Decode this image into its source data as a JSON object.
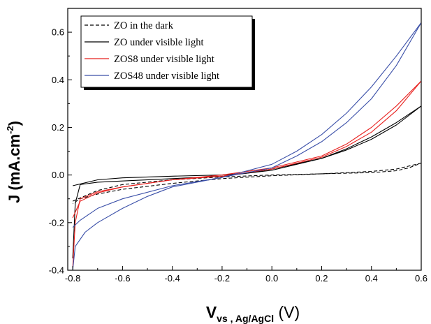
{
  "chart_data": {
    "type": "line",
    "xlabel": {
      "main": "V",
      "sub": "vs , Ag/AgCl",
      "unit": " (V)"
    },
    "ylabel": {
      "main": "J (mA.cm",
      "sup": "-2",
      "end": ")"
    },
    "xlim": [
      -0.82,
      0.6
    ],
    "ylim": [
      -0.4,
      0.7
    ],
    "x_ticks": [
      -0.8,
      -0.6,
      -0.4,
      -0.2,
      0.0,
      0.2,
      0.4,
      0.6
    ],
    "x_tick_labels": [
      "-0.8",
      "-0.6",
      "-0.4",
      "-0.2",
      "0.0",
      "0.2",
      "0.4",
      "0.6"
    ],
    "y_ticks": [
      -0.4,
      -0.2,
      0.0,
      0.2,
      0.4,
      0.6
    ],
    "y_tick_labels": [
      "-0.4",
      "-0.2",
      "0.0",
      "0.2",
      "0.4",
      "0.6"
    ],
    "legend_position": "top-left",
    "series": [
      {
        "name": "ZO in the dark",
        "color": "#000000",
        "dash": "dashed",
        "forward": [
          [
            -0.8,
            -0.11
          ],
          [
            -0.7,
            -0.065
          ],
          [
            -0.6,
            -0.04
          ],
          [
            -0.4,
            -0.02
          ],
          [
            -0.2,
            -0.008
          ],
          [
            0.0,
            0.0
          ],
          [
            0.2,
            0.005
          ],
          [
            0.4,
            0.01
          ],
          [
            0.5,
            0.018
          ],
          [
            0.55,
            0.03
          ],
          [
            0.6,
            0.05
          ]
        ],
        "reverse": [
          [
            0.6,
            0.05
          ],
          [
            0.5,
            0.025
          ],
          [
            0.4,
            0.015
          ],
          [
            0.2,
            0.005
          ],
          [
            0.0,
            -0.003
          ],
          [
            -0.2,
            -0.015
          ],
          [
            -0.4,
            -0.035
          ],
          [
            -0.6,
            -0.06
          ],
          [
            -0.7,
            -0.08
          ],
          [
            -0.77,
            -0.1
          ],
          [
            -0.8,
            -0.12
          ]
        ]
      },
      {
        "name": "ZO under visible light",
        "color": "#000000",
        "dash": "solid",
        "forward": [
          [
            -0.8,
            -0.045
          ],
          [
            -0.7,
            -0.02
          ],
          [
            -0.6,
            -0.012
          ],
          [
            -0.4,
            -0.005
          ],
          [
            -0.2,
            0.0
          ],
          [
            -0.1,
            0.008
          ],
          [
            0.0,
            0.025
          ],
          [
            0.2,
            0.07
          ],
          [
            0.3,
            0.11
          ],
          [
            0.4,
            0.16
          ],
          [
            0.5,
            0.22
          ],
          [
            0.6,
            0.29
          ]
        ],
        "reverse": [
          [
            0.6,
            0.29
          ],
          [
            0.5,
            0.21
          ],
          [
            0.4,
            0.15
          ],
          [
            0.3,
            0.105
          ],
          [
            0.2,
            0.07
          ],
          [
            0.0,
            0.02
          ],
          [
            -0.2,
            -0.005
          ],
          [
            -0.4,
            -0.015
          ],
          [
            -0.6,
            -0.025
          ],
          [
            -0.7,
            -0.03
          ],
          [
            -0.77,
            -0.04
          ],
          [
            -0.79,
            -0.12
          ],
          [
            -0.8,
            -0.35
          ]
        ]
      },
      {
        "name": "ZOS8 under visible light",
        "color": "#e8201e",
        "dash": "solid",
        "forward": [
          [
            -0.8,
            -0.39
          ],
          [
            -0.79,
            -0.2
          ],
          [
            -0.77,
            -0.1
          ],
          [
            -0.7,
            -0.07
          ],
          [
            -0.6,
            -0.05
          ],
          [
            -0.4,
            -0.02
          ],
          [
            -0.2,
            0.0
          ],
          [
            0.0,
            0.03
          ],
          [
            0.2,
            0.08
          ],
          [
            0.3,
            0.13
          ],
          [
            0.4,
            0.2
          ],
          [
            0.5,
            0.29
          ],
          [
            0.6,
            0.395
          ]
        ],
        "reverse": [
          [
            0.6,
            0.395
          ],
          [
            0.5,
            0.27
          ],
          [
            0.4,
            0.18
          ],
          [
            0.3,
            0.12
          ],
          [
            0.2,
            0.075
          ],
          [
            0.0,
            0.025
          ],
          [
            -0.2,
            -0.005
          ],
          [
            -0.4,
            -0.02
          ],
          [
            -0.6,
            -0.05
          ],
          [
            -0.7,
            -0.075
          ],
          [
            -0.77,
            -0.11
          ],
          [
            -0.8,
            -0.18
          ]
        ]
      },
      {
        "name": "ZOS48 under visible light",
        "color": "#3a4fa8",
        "dash": "solid",
        "forward": [
          [
            -0.8,
            -0.4
          ],
          [
            -0.79,
            -0.3
          ],
          [
            -0.75,
            -0.24
          ],
          [
            -0.7,
            -0.2
          ],
          [
            -0.6,
            -0.14
          ],
          [
            -0.5,
            -0.09
          ],
          [
            -0.4,
            -0.05
          ],
          [
            -0.2,
            -0.01
          ],
          [
            0.0,
            0.045
          ],
          [
            0.1,
            0.1
          ],
          [
            0.2,
            0.17
          ],
          [
            0.3,
            0.26
          ],
          [
            0.4,
            0.37
          ],
          [
            0.5,
            0.5
          ],
          [
            0.6,
            0.64
          ]
        ],
        "reverse": [
          [
            0.6,
            0.64
          ],
          [
            0.5,
            0.46
          ],
          [
            0.4,
            0.32
          ],
          [
            0.3,
            0.22
          ],
          [
            0.2,
            0.14
          ],
          [
            0.1,
            0.08
          ],
          [
            0.0,
            0.03
          ],
          [
            -0.2,
            -0.01
          ],
          [
            -0.4,
            -0.045
          ],
          [
            -0.6,
            -0.1
          ],
          [
            -0.7,
            -0.14
          ],
          [
            -0.77,
            -0.19
          ],
          [
            -0.8,
            -0.22
          ]
        ]
      }
    ]
  }
}
